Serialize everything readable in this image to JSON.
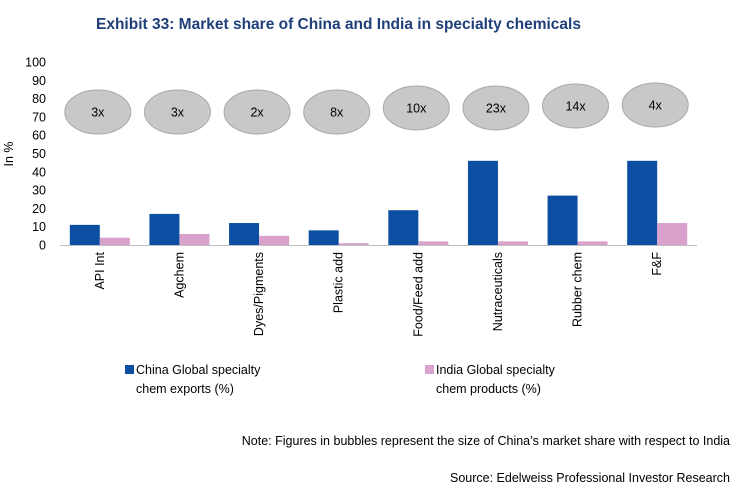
{
  "chart_data": {
    "type": "bar",
    "title": "Exhibit 33: Market share of China and India in specialty chemicals",
    "ylabel": "In %",
    "xlabel": "",
    "ylim": [
      0,
      100
    ],
    "yticks": [
      0,
      10,
      20,
      30,
      40,
      50,
      60,
      70,
      80,
      90,
      100
    ],
    "categories": [
      "API Int",
      "Agchem",
      "Dyes/Pigments",
      "Plastic add",
      "Food/Feed add",
      "Nutraceuticals",
      "Rubber chem",
      "F&F"
    ],
    "series": [
      {
        "name": "China Global specialty chem exports (%)",
        "values": [
          11,
          17,
          12,
          8,
          19,
          46,
          27,
          46
        ]
      },
      {
        "name": "India Global specialty chem products (%)",
        "values": [
          4,
          6,
          5,
          1,
          2,
          2,
          2,
          12
        ]
      }
    ],
    "bubbles": [
      "3x",
      "3x",
      "2x",
      "8x",
      "10x",
      "23x",
      "14x",
      "4x"
    ],
    "legend": {
      "china_line1": "China Global specialty",
      "china_line2": "chem exports (%)",
      "india_line1": "India Global specialty",
      "india_line2": "chem products (%)"
    },
    "note": "Note: Figures in bubbles represent the size of China’s market share with respect to India",
    "source": "Source: Edelweiss Professional Investor Research"
  },
  "colors": {
    "china": "#0b4ea2",
    "india": "#d9a2cd",
    "bubble_fill": "#c8c8c8",
    "bubble_stroke": "#a9a9a9",
    "title": "#1f3f7a",
    "axis": "#bfbfbf"
  }
}
